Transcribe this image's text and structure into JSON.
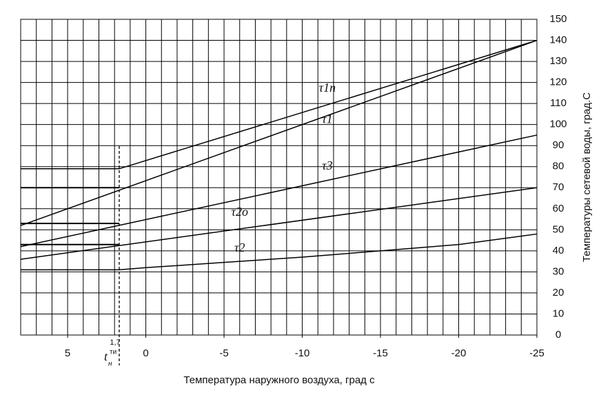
{
  "chart_data": {
    "type": "line",
    "x_label": "Температура наружного воздуха, град с",
    "y_label": "Температуры сетевой воды, град.С",
    "xlim": [
      8,
      -25
    ],
    "ylim": [
      0,
      150
    ],
    "xticks": [
      5,
      0,
      -5,
      -10,
      -15,
      -20,
      -25
    ],
    "yticks": [
      0,
      10,
      20,
      30,
      40,
      50,
      60,
      70,
      80,
      90,
      100,
      110,
      120,
      130,
      140,
      150
    ],
    "grid": true,
    "grid_x_step": 1,
    "color": "#000000",
    "series": [
      {
        "name": "τ1п",
        "x": [
          8,
          1.7,
          -25
        ],
        "values": [
          79,
          79,
          140
        ]
      },
      {
        "name": "τ1",
        "x": [
          8,
          -25
        ],
        "values": [
          52,
          140
        ]
      },
      {
        "name": "τ3",
        "x": [
          8,
          -25
        ],
        "values": [
          42,
          95
        ]
      },
      {
        "name": "τ2о",
        "x": [
          8,
          -25
        ],
        "values": [
          36,
          70
        ]
      },
      {
        "name": "τ2",
        "x": [
          8,
          1.7,
          0,
          -5,
          -10,
          -15,
          -20,
          -25
        ],
        "values": [
          31,
          31,
          32,
          34.5,
          37,
          40,
          43,
          48
        ]
      }
    ],
    "hlines": [
      70,
      53,
      43
    ],
    "vline": {
      "value": 1.7,
      "label": "1,7",
      "symbol": "t",
      "subscript": "н",
      "superscript": "ти"
    }
  }
}
